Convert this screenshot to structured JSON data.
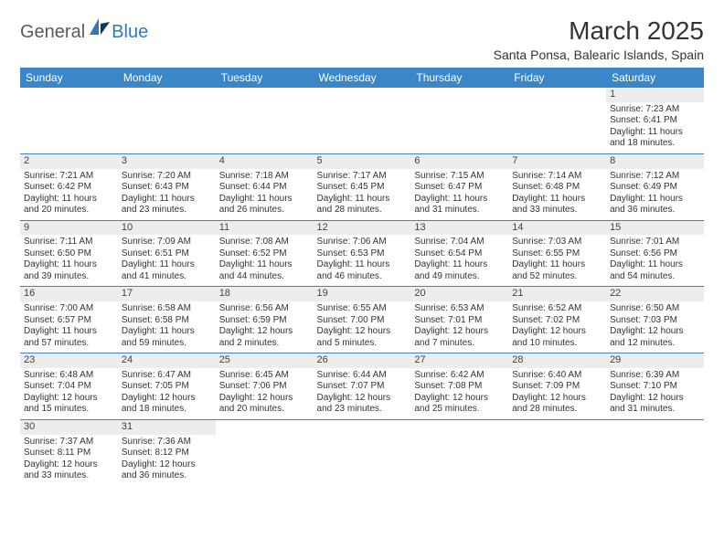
{
  "logo": {
    "text_general": "General",
    "text_blue": "Blue"
  },
  "title": "March 2025",
  "location": "Santa Ponsa, Balearic Islands, Spain",
  "colors": {
    "header_bg": "#3b86c7",
    "header_text": "#ffffff",
    "daynum_bg": "#ededed",
    "border": "#3b86c7",
    "body_text": "#333333",
    "logo_gray": "#5a5a5a",
    "logo_blue": "#2f78bf"
  },
  "days_of_week": [
    "Sunday",
    "Monday",
    "Tuesday",
    "Wednesday",
    "Thursday",
    "Friday",
    "Saturday"
  ],
  "weeks": [
    [
      null,
      null,
      null,
      null,
      null,
      null,
      {
        "n": "1",
        "sr": "Sunrise: 7:23 AM",
        "ss": "Sunset: 6:41 PM",
        "d1": "Daylight: 11 hours",
        "d2": "and 18 minutes."
      }
    ],
    [
      {
        "n": "2",
        "sr": "Sunrise: 7:21 AM",
        "ss": "Sunset: 6:42 PM",
        "d1": "Daylight: 11 hours",
        "d2": "and 20 minutes."
      },
      {
        "n": "3",
        "sr": "Sunrise: 7:20 AM",
        "ss": "Sunset: 6:43 PM",
        "d1": "Daylight: 11 hours",
        "d2": "and 23 minutes."
      },
      {
        "n": "4",
        "sr": "Sunrise: 7:18 AM",
        "ss": "Sunset: 6:44 PM",
        "d1": "Daylight: 11 hours",
        "d2": "and 26 minutes."
      },
      {
        "n": "5",
        "sr": "Sunrise: 7:17 AM",
        "ss": "Sunset: 6:45 PM",
        "d1": "Daylight: 11 hours",
        "d2": "and 28 minutes."
      },
      {
        "n": "6",
        "sr": "Sunrise: 7:15 AM",
        "ss": "Sunset: 6:47 PM",
        "d1": "Daylight: 11 hours",
        "d2": "and 31 minutes."
      },
      {
        "n": "7",
        "sr": "Sunrise: 7:14 AM",
        "ss": "Sunset: 6:48 PM",
        "d1": "Daylight: 11 hours",
        "d2": "and 33 minutes."
      },
      {
        "n": "8",
        "sr": "Sunrise: 7:12 AM",
        "ss": "Sunset: 6:49 PM",
        "d1": "Daylight: 11 hours",
        "d2": "and 36 minutes."
      }
    ],
    [
      {
        "n": "9",
        "sr": "Sunrise: 7:11 AM",
        "ss": "Sunset: 6:50 PM",
        "d1": "Daylight: 11 hours",
        "d2": "and 39 minutes."
      },
      {
        "n": "10",
        "sr": "Sunrise: 7:09 AM",
        "ss": "Sunset: 6:51 PM",
        "d1": "Daylight: 11 hours",
        "d2": "and 41 minutes."
      },
      {
        "n": "11",
        "sr": "Sunrise: 7:08 AM",
        "ss": "Sunset: 6:52 PM",
        "d1": "Daylight: 11 hours",
        "d2": "and 44 minutes."
      },
      {
        "n": "12",
        "sr": "Sunrise: 7:06 AM",
        "ss": "Sunset: 6:53 PM",
        "d1": "Daylight: 11 hours",
        "d2": "and 46 minutes."
      },
      {
        "n": "13",
        "sr": "Sunrise: 7:04 AM",
        "ss": "Sunset: 6:54 PM",
        "d1": "Daylight: 11 hours",
        "d2": "and 49 minutes."
      },
      {
        "n": "14",
        "sr": "Sunrise: 7:03 AM",
        "ss": "Sunset: 6:55 PM",
        "d1": "Daylight: 11 hours",
        "d2": "and 52 minutes."
      },
      {
        "n": "15",
        "sr": "Sunrise: 7:01 AM",
        "ss": "Sunset: 6:56 PM",
        "d1": "Daylight: 11 hours",
        "d2": "and 54 minutes."
      }
    ],
    [
      {
        "n": "16",
        "sr": "Sunrise: 7:00 AM",
        "ss": "Sunset: 6:57 PM",
        "d1": "Daylight: 11 hours",
        "d2": "and 57 minutes."
      },
      {
        "n": "17",
        "sr": "Sunrise: 6:58 AM",
        "ss": "Sunset: 6:58 PM",
        "d1": "Daylight: 11 hours",
        "d2": "and 59 minutes."
      },
      {
        "n": "18",
        "sr": "Sunrise: 6:56 AM",
        "ss": "Sunset: 6:59 PM",
        "d1": "Daylight: 12 hours",
        "d2": "and 2 minutes."
      },
      {
        "n": "19",
        "sr": "Sunrise: 6:55 AM",
        "ss": "Sunset: 7:00 PM",
        "d1": "Daylight: 12 hours",
        "d2": "and 5 minutes."
      },
      {
        "n": "20",
        "sr": "Sunrise: 6:53 AM",
        "ss": "Sunset: 7:01 PM",
        "d1": "Daylight: 12 hours",
        "d2": "and 7 minutes."
      },
      {
        "n": "21",
        "sr": "Sunrise: 6:52 AM",
        "ss": "Sunset: 7:02 PM",
        "d1": "Daylight: 12 hours",
        "d2": "and 10 minutes."
      },
      {
        "n": "22",
        "sr": "Sunrise: 6:50 AM",
        "ss": "Sunset: 7:03 PM",
        "d1": "Daylight: 12 hours",
        "d2": "and 12 minutes."
      }
    ],
    [
      {
        "n": "23",
        "sr": "Sunrise: 6:48 AM",
        "ss": "Sunset: 7:04 PM",
        "d1": "Daylight: 12 hours",
        "d2": "and 15 minutes."
      },
      {
        "n": "24",
        "sr": "Sunrise: 6:47 AM",
        "ss": "Sunset: 7:05 PM",
        "d1": "Daylight: 12 hours",
        "d2": "and 18 minutes."
      },
      {
        "n": "25",
        "sr": "Sunrise: 6:45 AM",
        "ss": "Sunset: 7:06 PM",
        "d1": "Daylight: 12 hours",
        "d2": "and 20 minutes."
      },
      {
        "n": "26",
        "sr": "Sunrise: 6:44 AM",
        "ss": "Sunset: 7:07 PM",
        "d1": "Daylight: 12 hours",
        "d2": "and 23 minutes."
      },
      {
        "n": "27",
        "sr": "Sunrise: 6:42 AM",
        "ss": "Sunset: 7:08 PM",
        "d1": "Daylight: 12 hours",
        "d2": "and 25 minutes."
      },
      {
        "n": "28",
        "sr": "Sunrise: 6:40 AM",
        "ss": "Sunset: 7:09 PM",
        "d1": "Daylight: 12 hours",
        "d2": "and 28 minutes."
      },
      {
        "n": "29",
        "sr": "Sunrise: 6:39 AM",
        "ss": "Sunset: 7:10 PM",
        "d1": "Daylight: 12 hours",
        "d2": "and 31 minutes."
      }
    ],
    [
      {
        "n": "30",
        "sr": "Sunrise: 7:37 AM",
        "ss": "Sunset: 8:11 PM",
        "d1": "Daylight: 12 hours",
        "d2": "and 33 minutes."
      },
      {
        "n": "31",
        "sr": "Sunrise: 7:36 AM",
        "ss": "Sunset: 8:12 PM",
        "d1": "Daylight: 12 hours",
        "d2": "and 36 minutes."
      },
      null,
      null,
      null,
      null,
      null
    ]
  ]
}
